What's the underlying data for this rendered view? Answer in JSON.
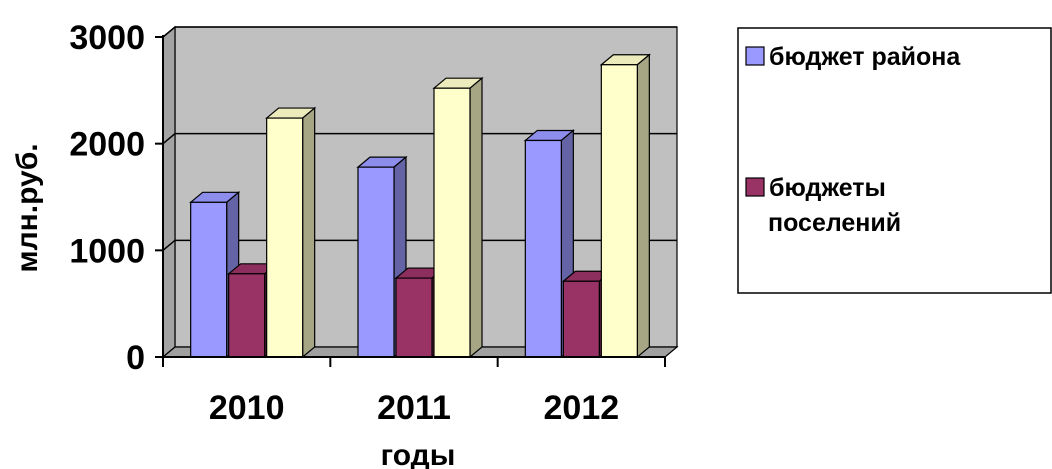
{
  "chart_data": {
    "type": "bar",
    "title": "",
    "xlabel": "годы",
    "ylabel": "млн.руб.",
    "categories": [
      "2010",
      "2011",
      "2012"
    ],
    "ylim": [
      0,
      3000
    ],
    "yticks": [
      0,
      1000,
      2000,
      3000
    ],
    "yticklabels": [
      "0",
      "1000",
      "2000",
      "3000"
    ],
    "grid": true,
    "legend_position": "right",
    "series": [
      {
        "name": "бюджет района",
        "values": [
          1450,
          1780,
          2030
        ],
        "color": "#9999FF"
      },
      {
        "name": "",
        "values": [
          780,
          740,
          710
        ],
        "color": "#993366"
      },
      {
        "name": "",
        "values": [
          2240,
          2520,
          2740
        ],
        "color": "#FFFFCC"
      }
    ],
    "legend": [
      {
        "series_index": 0,
        "lines": [
          "бюджет района"
        ],
        "color": "#9999FF"
      },
      {
        "series_index": 1,
        "lines": [
          "бюджеты",
          "поселений"
        ],
        "color": "#993366"
      }
    ],
    "style": {
      "plot_wall_color": "#C0C0C0",
      "plot_floor_color": "#A0A0A0",
      "gridline_color": "#000000",
      "bar_outline_color": "#000000"
    }
  }
}
